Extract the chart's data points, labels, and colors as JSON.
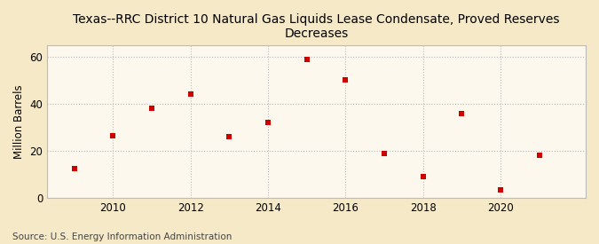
{
  "title": "Texas--RRC District 10 Natural Gas Liquids Lease Condensate, Proved Reserves\nDecreases",
  "ylabel": "Million Barrels",
  "source": "Source: U.S. Energy Information Administration",
  "years": [
    2009,
    2010,
    2011,
    2012,
    2013,
    2014,
    2015,
    2016,
    2017,
    2018,
    2019,
    2020,
    2021
  ],
  "values": [
    12.5,
    26.2,
    38.0,
    44.0,
    25.8,
    32.0,
    58.8,
    50.3,
    19.0,
    9.0,
    35.8,
    3.2,
    18.2
  ],
  "marker_color": "#cc0000",
  "marker": "s",
  "marker_size": 4,
  "fig_background_color": "#f5e9c8",
  "plot_background_color": "#fdf8ee",
  "grid_color": "#bbbbbb",
  "spine_color": "#bbbbbb",
  "xlim": [
    2008.3,
    2022.2
  ],
  "ylim": [
    0,
    65
  ],
  "yticks": [
    0,
    20,
    40,
    60
  ],
  "xticks": [
    2010,
    2012,
    2014,
    2016,
    2018,
    2020
  ],
  "title_fontsize": 10,
  "label_fontsize": 8.5,
  "tick_fontsize": 8.5,
  "source_fontsize": 7.5,
  "title_fontweight": "normal"
}
